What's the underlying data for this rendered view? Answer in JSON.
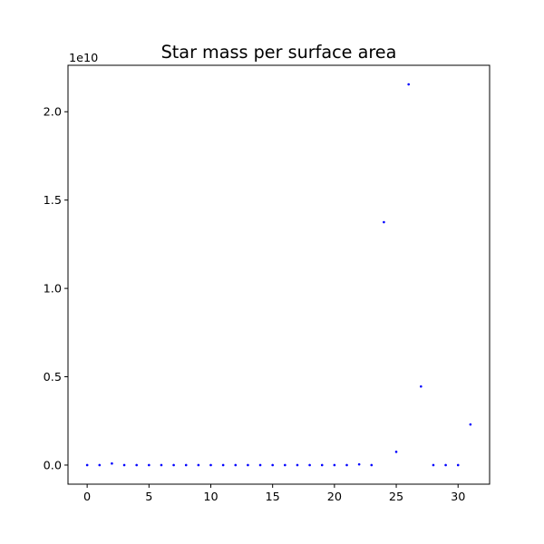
{
  "chart_data": {
    "type": "scatter",
    "title": "Star mass per surface area",
    "xlabel": "",
    "ylabel": "",
    "x": [
      0,
      1,
      2,
      3,
      4,
      5,
      6,
      7,
      8,
      9,
      10,
      11,
      12,
      13,
      14,
      15,
      16,
      17,
      18,
      19,
      20,
      21,
      22,
      23,
      24,
      25,
      26,
      27,
      28,
      29,
      30,
      31
    ],
    "y": [
      0,
      0,
      0.09,
      0,
      0,
      0,
      0,
      0,
      0,
      0,
      0,
      0,
      0,
      0,
      0,
      0,
      0,
      0,
      0,
      0,
      0,
      0,
      0.04,
      0,
      13.75,
      0.75,
      21.55,
      4.45,
      0,
      0,
      0,
      2.3
    ],
    "y_scale_multiplier": "1e10",
    "xlim": [
      -1.55,
      32.55
    ],
    "ylim": [
      -1.08,
      22.63
    ],
    "x_ticks": [
      0,
      5,
      10,
      15,
      20,
      25,
      30
    ],
    "y_ticks": [
      0.0,
      0.5,
      1.0,
      1.5,
      2.0
    ],
    "x_tick_labels": [
      "0",
      "5",
      "10",
      "15",
      "20",
      "25",
      "30"
    ],
    "y_tick_labels": [
      "0.0",
      "0.5",
      "1.0",
      "1.5",
      "2.0"
    ],
    "marker_color": "#0000ff",
    "grid": false,
    "legend": "none"
  }
}
